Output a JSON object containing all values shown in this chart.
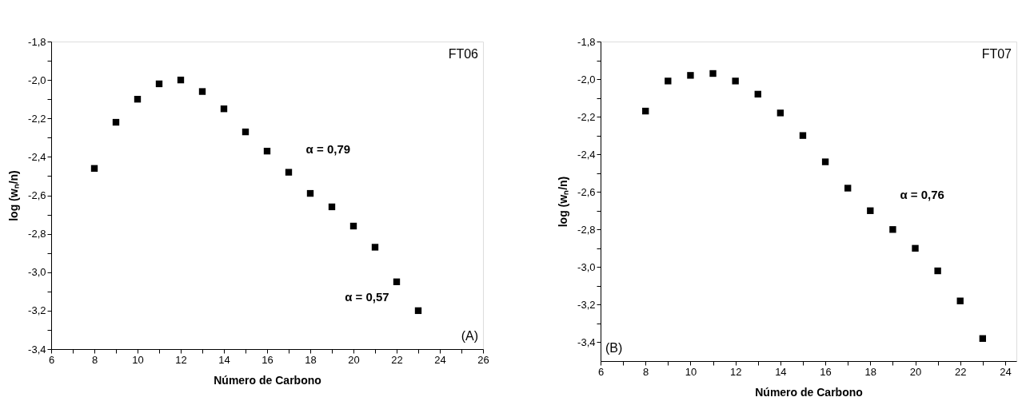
{
  "chart_data": [
    {
      "type": "scatter",
      "xlabel": "Número de Carbono",
      "ylabel": "log (wₙ/n)",
      "marker": "square",
      "grid": false,
      "legend": false,
      "x": [
        8,
        9,
        10,
        11,
        12,
        13,
        14,
        15,
        16,
        17,
        18,
        19,
        20,
        21,
        22,
        23
      ],
      "series": [
        {
          "color": "#000000",
          "values": [
            -2.46,
            -2.22,
            -2.1,
            -2.02,
            -2.0,
            -2.06,
            -2.15,
            -2.27,
            -2.37,
            -2.48,
            -2.59,
            -2.66,
            -2.76,
            -2.87,
            -3.05,
            -3.2
          ]
        }
      ],
      "xlim": [
        6,
        26
      ],
      "xticks": [
        6,
        {
          "value": 7,
          "label": null
        },
        8,
        {
          "value": 9,
          "label": null
        },
        10,
        {
          "value": 11,
          "label": null
        },
        12,
        {
          "value": 13,
          "label": null
        },
        14,
        {
          "value": 15,
          "label": null
        },
        16,
        {
          "value": 17,
          "label": null
        },
        18,
        {
          "value": 19,
          "label": null
        },
        20,
        {
          "value": 21,
          "label": null
        },
        22,
        {
          "value": 23,
          "label": null
        },
        24,
        {
          "value": 25,
          "label": null
        },
        26
      ],
      "ylim": [
        -3.4,
        -1.8
      ],
      "yticks": [
        {
          "value": -3.4,
          "label": "-3,4"
        },
        {
          "value": -3.3,
          "label": null
        },
        {
          "value": -3.2,
          "label": "-3,2"
        },
        {
          "value": -3.1,
          "label": null
        },
        {
          "value": -3.0,
          "label": "-3,0"
        },
        {
          "value": -2.9,
          "label": null
        },
        {
          "value": -2.8,
          "label": "-2,8"
        },
        {
          "value": -2.7,
          "label": null
        },
        {
          "value": -2.6,
          "label": "-2,6"
        },
        {
          "value": -2.5,
          "label": null
        },
        {
          "value": -2.4,
          "label": "-2,4"
        },
        {
          "value": -2.3,
          "label": null
        },
        {
          "value": -2.2,
          "label": "-2,2"
        },
        {
          "value": -2.1,
          "label": null
        },
        {
          "value": -2.0,
          "label": "-2,0"
        },
        {
          "value": -1.9,
          "label": null
        },
        {
          "value": -1.8,
          "label": "-1,8"
        }
      ],
      "annotations": [
        "FT06",
        "(A)",
        "α = 0,79",
        "α = 0,57"
      ]
    },
    {
      "type": "scatter",
      "xlabel": "Número de Carbono",
      "ylabel": "log (wₙ/n)",
      "marker": "square",
      "grid": false,
      "legend": false,
      "x": [
        8,
        9,
        10,
        11,
        12,
        13,
        14,
        15,
        16,
        17,
        18,
        19,
        20,
        21,
        22,
        23
      ],
      "series": [
        {
          "color": "#000000",
          "values": [
            -2.17,
            -2.01,
            -1.98,
            -1.97,
            -2.01,
            -2.08,
            -2.18,
            -2.3,
            -2.44,
            -2.58,
            -2.7,
            -2.8,
            -2.9,
            -3.02,
            -3.18,
            -3.38
          ]
        }
      ],
      "xlim": [
        6,
        24.5
      ],
      "xticks": [
        6,
        {
          "value": 7,
          "label": null
        },
        8,
        {
          "value": 9,
          "label": null
        },
        10,
        {
          "value": 11,
          "label": null
        },
        12,
        {
          "value": 13,
          "label": null
        },
        14,
        {
          "value": 15,
          "label": null
        },
        16,
        {
          "value": 17,
          "label": null
        },
        18,
        {
          "value": 19,
          "label": null
        },
        20,
        {
          "value": 21,
          "label": null
        },
        22,
        {
          "value": 23,
          "label": null
        },
        24
      ],
      "ylim": [
        -3.5,
        -1.8
      ],
      "yticks": [
        {
          "value": -3.4,
          "label": "-3,4"
        },
        {
          "value": -3.3,
          "label": null
        },
        {
          "value": -3.2,
          "label": "-3,2"
        },
        {
          "value": -3.1,
          "label": null
        },
        {
          "value": -3.0,
          "label": "-3,0"
        },
        {
          "value": -2.9,
          "label": null
        },
        {
          "value": -2.8,
          "label": "-2,8"
        },
        {
          "value": -2.7,
          "label": null
        },
        {
          "value": -2.6,
          "label": "-2,6"
        },
        {
          "value": -2.5,
          "label": null
        },
        {
          "value": -2.4,
          "label": "-2,4"
        },
        {
          "value": -2.3,
          "label": null
        },
        {
          "value": -2.2,
          "label": "-2,2"
        },
        {
          "value": -2.1,
          "label": null
        },
        {
          "value": -2.0,
          "label": "-2,0"
        },
        {
          "value": -1.9,
          "label": null
        },
        {
          "value": -1.8,
          "label": "-1,8"
        }
      ],
      "annotations": [
        "FT07",
        "(B)",
        "α = 0,76"
      ]
    }
  ]
}
